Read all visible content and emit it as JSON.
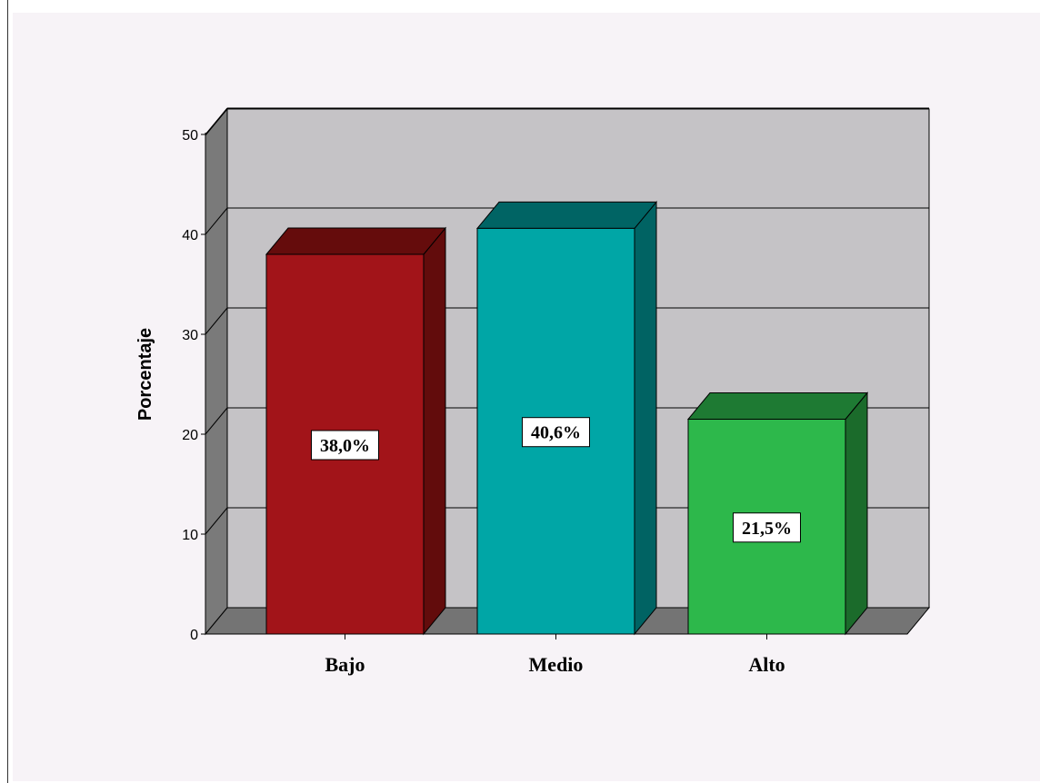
{
  "chart_data": {
    "type": "bar",
    "categories": [
      "Bajo",
      "Medio",
      "Alto"
    ],
    "values": [
      38.0,
      40.6,
      21.5
    ],
    "data_labels": [
      "38,0%",
      "40,6%",
      "21,5%"
    ],
    "yticks": [
      "0",
      "10",
      "20",
      "30",
      "40",
      "50"
    ],
    "ylabel": "Porcentaje",
    "ylim": [
      0,
      50
    ],
    "grid": true,
    "legend": "none",
    "colors": {
      "bars": [
        "#a21419",
        "#00a6a6",
        "#2db84b"
      ],
      "bar_sides": [
        "#620c0c",
        "#006363",
        "#1b6b2b"
      ],
      "bar_tops": [
        "#650c0c",
        "#006464",
        "#1e7a33"
      ],
      "back_wall": "#c5c3c6",
      "side_wall": "#7a7a7a",
      "floor": "#747474"
    }
  }
}
